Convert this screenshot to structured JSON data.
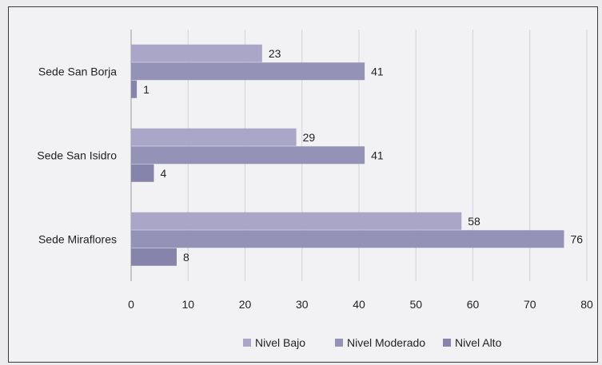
{
  "chart_data": {
    "type": "bar",
    "orientation": "horizontal",
    "title": "",
    "xlabel": "",
    "ylabel": "",
    "categories": [
      "Sede San Borja",
      "Sede San Isidro",
      "Sede Miraflores"
    ],
    "series": [
      {
        "name": "Nivel Bajo",
        "values": [
          23,
          29,
          58
        ],
        "color": "#a9a6c8"
      },
      {
        "name": "Nivel Moderado",
        "values": [
          41,
          41,
          76
        ],
        "color": "#9592b8"
      },
      {
        "name": "Nivel Alto",
        "values": [
          1,
          4,
          8
        ],
        "color": "#8784ab"
      }
    ],
    "xlim": [
      0,
      80
    ],
    "xticks": [
      0,
      10,
      20,
      30,
      40,
      50,
      60,
      70,
      80
    ],
    "grid": true,
    "legend_position": "bottom",
    "data_labels": true
  }
}
